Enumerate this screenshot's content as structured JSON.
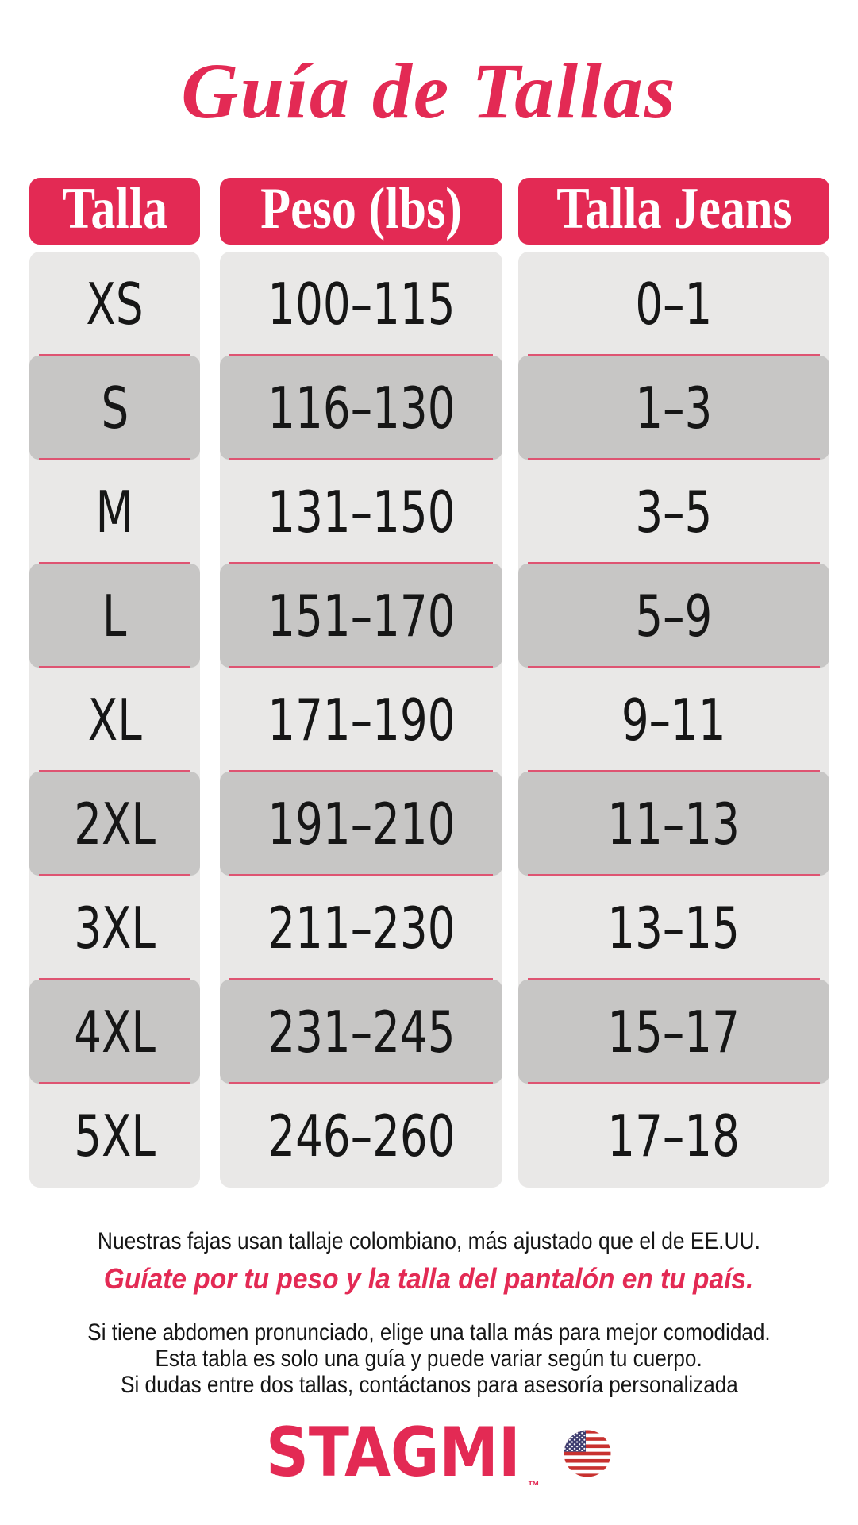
{
  "title": "Guía de Tallas",
  "colors": {
    "accent": "#E32A54",
    "row_light": "#E9E8E7",
    "row_dark": "#C7C6C5",
    "separator": "#DE5472",
    "flag_red": "#C8312F",
    "flag_blue": "#3C3B6E",
    "ink": "#161616",
    "header_text": "#FFFFFF"
  },
  "table": {
    "columns": [
      {
        "header": "Talla",
        "values": [
          "XS",
          "S",
          "M",
          "L",
          "XL",
          "2XL",
          "3XL",
          "4XL",
          "5XL"
        ]
      },
      {
        "header": "Peso (lbs)",
        "values": [
          "100–115",
          "116–130",
          "131–150",
          "151–170",
          "171–190",
          "191–210",
          "211–230",
          "231–245",
          "246–260"
        ]
      },
      {
        "header": "Talla Jeans",
        "values": [
          "0–1",
          "1–3",
          "3–5",
          "5–9",
          "9–11",
          "11–13",
          "13–15",
          "15–17",
          "17–18"
        ]
      }
    ]
  },
  "notes": {
    "line1": "Nuestras fajas usan tallaje colombiano, más ajustado que el de EE.UU.",
    "line2": "Guíate por tu peso y la talla del pantalón en tu país.",
    "tips": [
      "Si tiene abdomen pronunciado, elige una talla más para mejor comodidad.",
      "Esta tabla es solo una guía y puede variar según tu cuerpo.",
      "Si dudas entre dos tallas, contáctanos para asesoría personalizada"
    ]
  },
  "logo": {
    "brand": "STAGMI",
    "trademark": "™",
    "flag_icon": "us-flag-icon"
  }
}
